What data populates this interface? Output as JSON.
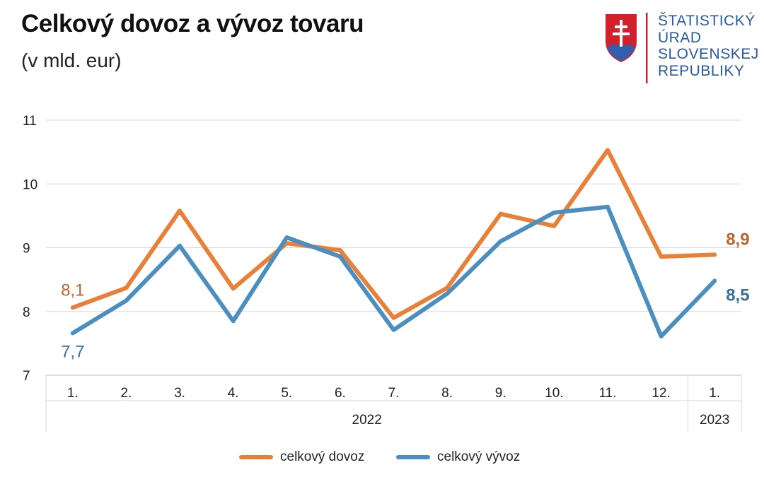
{
  "header": {
    "title": "Celkový dovoz a vývoz tovaru",
    "subtitle": "(v mld. eur)"
  },
  "logo": {
    "lines": [
      "ŠTATISTICKÝ",
      "ÚRAD",
      "SLOVENSKEJ",
      "REPUBLIKY"
    ],
    "text_color": "#2b5a9e",
    "emblem": "slovak-coat-of-arms-icon"
  },
  "legend": {
    "import_label": "celkový dovoz",
    "export_label": "celkový vývoz"
  },
  "chart_data": {
    "type": "line",
    "categories": [
      "1.",
      "2.",
      "3.",
      "4.",
      "5.",
      "6.",
      "7.",
      "8.",
      "9.",
      "10.",
      "11.",
      "12.",
      "1."
    ],
    "year_groups": [
      {
        "label": "2022",
        "from": 0,
        "to": 11
      },
      {
        "label": "2023",
        "from": 12,
        "to": 12
      }
    ],
    "series": [
      {
        "name": "celkový dovoz",
        "color": "#e8803a",
        "label_color": "#b8652c",
        "values": [
          8.06,
          8.37,
          9.58,
          8.36,
          9.07,
          8.96,
          7.9,
          8.37,
          9.53,
          9.34,
          10.53,
          8.86,
          8.89
        ],
        "first_label": "8,1",
        "last_label": "8,9"
      },
      {
        "name": "celkový vývoz",
        "color": "#4a8fc0",
        "label_color": "#3a6f9c",
        "values": [
          7.66,
          8.17,
          9.03,
          7.85,
          9.16,
          8.86,
          7.71,
          8.28,
          9.1,
          9.55,
          9.64,
          7.61,
          8.48
        ],
        "first_label": "7,7",
        "last_label": "8,5"
      }
    ],
    "yticks": [
      "7",
      "8",
      "9",
      "10",
      "11"
    ],
    "ylim": [
      7,
      11
    ],
    "grid": true,
    "legend_position": "bottom"
  }
}
